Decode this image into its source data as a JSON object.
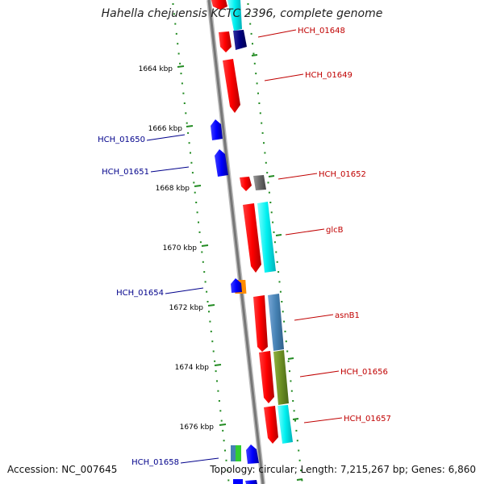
{
  "title": "Hahella chejuensis KCTC 2396, complete genome",
  "footer": {
    "accession": "Accession: NC_007645",
    "topology": "Topology: circular; Length: 7,215,267 bp; Genes: 6,860"
  },
  "ruler_ticks": [
    "1664 kbp",
    "1666 kbp",
    "1668 kbp",
    "1670 kbp",
    "1672 kbp",
    "1674 kbp",
    "1676 kbp"
  ],
  "genes_forward": [
    {
      "label": "HCH_01648",
      "color": "#c00000"
    },
    {
      "label": "HCH_01649",
      "color": "#c00000"
    },
    {
      "label": "HCH_01652",
      "color": "#c00000"
    },
    {
      "label": "glcB",
      "color": "#c00000"
    },
    {
      "label": "asnB1",
      "color": "#c00000"
    },
    {
      "label": "HCH_01656",
      "color": "#c00000"
    },
    {
      "label": "HCH_01657",
      "color": "#c00000"
    }
  ],
  "genes_reverse": [
    {
      "label": "HCH_01650",
      "color": "#00008b"
    },
    {
      "label": "HCH_01651",
      "color": "#00008b"
    },
    {
      "label": "HCH_01654",
      "color": "#00008b"
    },
    {
      "label": "HCH_01658",
      "color": "#00008b"
    }
  ],
  "colors": {
    "forward_gene": "#ff0000",
    "reverse_gene": "#0000ff",
    "backbone": "#888888",
    "ruler_dots": "#228b22",
    "cyan": "#00e5ee",
    "steelblue": "#4682b4",
    "olive": "#6b8e23",
    "navy": "#000080",
    "grey": "#696969",
    "orange": "#ff8c00",
    "green": "#32cd32"
  }
}
